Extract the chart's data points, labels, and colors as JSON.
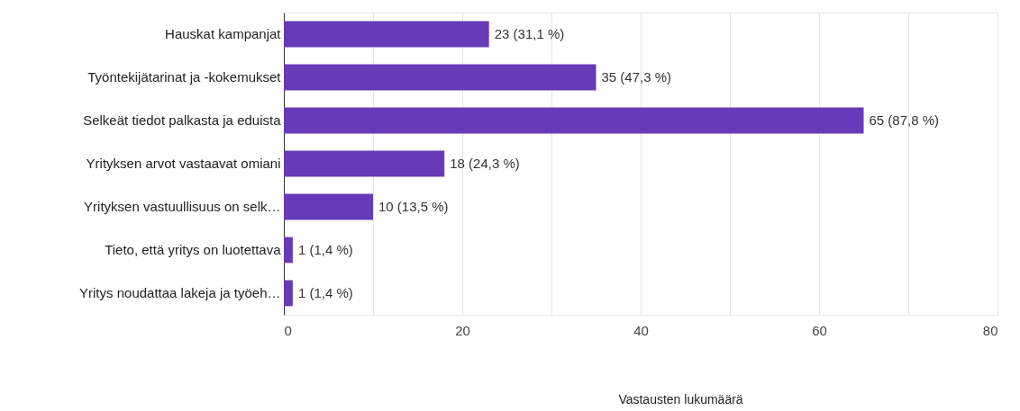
{
  "chart_data": {
    "type": "bar",
    "orientation": "horizontal",
    "xlabel": "Vastausten lukumäärä",
    "categories": [
      "Hauskat kampanjat",
      "Työntekijätarinat ja -kokemukset",
      "Selkeät tiedot palkasta ja eduista",
      "Yrityksen arvot vastaavat omiani",
      "Yrityksen vastuullisuus on selk…",
      "Tieto, että yritys on luotettava",
      "Yritys noudattaa lakeja ja työeh…"
    ],
    "values": [
      23,
      35,
      65,
      18,
      10,
      1,
      1
    ],
    "value_labels": [
      "23 (31,1 %)",
      "35 (47,3 %)",
      "65 (87,8 %)",
      "18 (24,3 %)",
      "10 (13,5 %)",
      "1 (1,4 %)",
      "1 (1,4 %)"
    ],
    "color": "#673ab7",
    "xlim": [
      0,
      80
    ],
    "xticks": [
      0,
      {
        "value": 10,
        "label": null
      },
      20,
      {
        "value": 30,
        "label": null
      },
      40,
      {
        "value": 50,
        "label": null
      },
      60,
      {
        "value": 70,
        "label": null
      },
      80
    ],
    "grid": "x"
  }
}
